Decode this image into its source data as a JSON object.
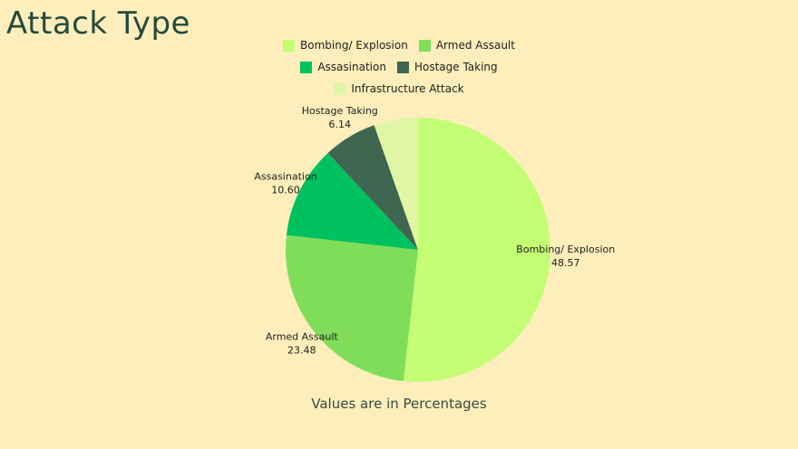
{
  "page": {
    "title": "Attack Type",
    "footnote": "Values are in Percentages"
  },
  "chart_data": {
    "type": "pie",
    "title": "Attack Type",
    "slices": [
      {
        "label": "Bombing/ Explosion",
        "value": 48.57,
        "display": "48.57",
        "color": "#c3fd74"
      },
      {
        "label": "Armed Assault",
        "value": 23.48,
        "display": "23.48",
        "color": "#80dd5a"
      },
      {
        "label": "Assasination",
        "value": 10.6,
        "display": "10.60",
        "color": "#00c15f"
      },
      {
        "label": "Hostage Taking",
        "value": 6.14,
        "display": "6.14",
        "color": "#3e6651"
      },
      {
        "label": "Infrastructure Attack",
        "value": 5.05,
        "display": "",
        "color": "#e0f5a6"
      }
    ],
    "legend_placement": "top-center",
    "start": "top",
    "direction": "clockwise"
  }
}
